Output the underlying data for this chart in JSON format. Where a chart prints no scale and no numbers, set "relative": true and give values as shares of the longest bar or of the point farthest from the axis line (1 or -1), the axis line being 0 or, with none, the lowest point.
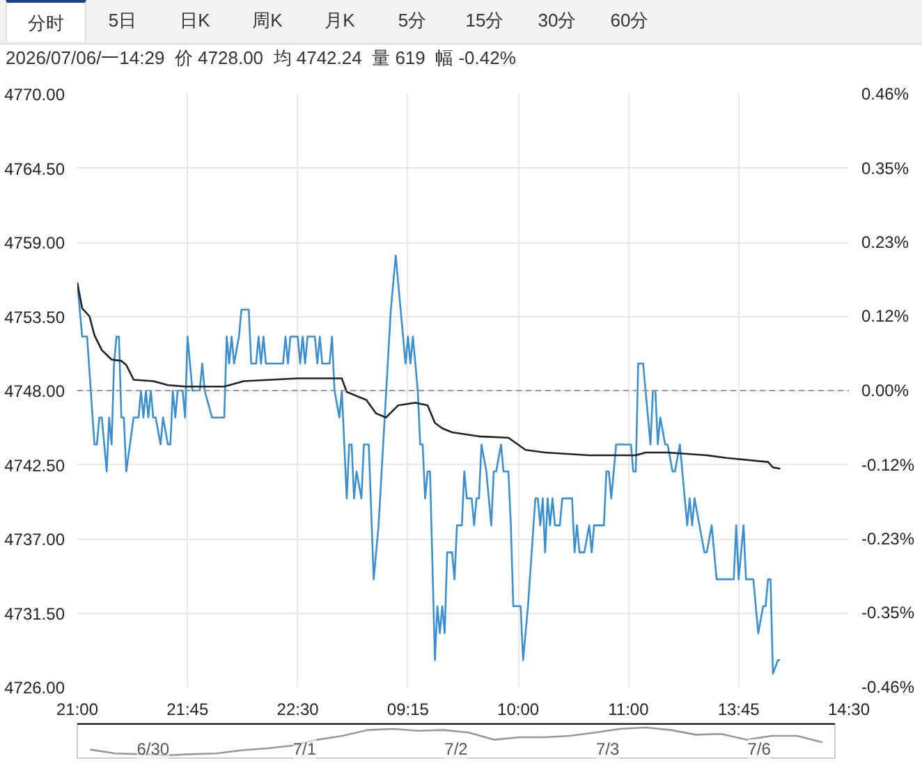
{
  "chart_data": [
    {
      "type": "line",
      "title": "2026/07/06/一14:29  价 4728.00  均 4742.24  量 619  幅 -0.42%",
      "annotations": [
        "分时",
        "5日",
        "日K",
        "周K",
        "月K",
        "5分",
        "15分",
        "30分",
        "60分"
      ],
      "categories": [
        "21:00",
        null,
        null,
        null,
        null,
        null,
        null,
        null,
        null,
        null,
        null,
        null,
        null,
        null,
        null,
        null,
        null,
        null,
        null,
        null,
        null,
        null,
        null,
        null,
        null,
        null,
        null,
        null,
        null,
        null,
        null,
        null,
        null,
        null,
        null,
        null,
        null,
        null,
        null,
        null,
        null,
        null,
        null,
        null,
        null,
        "21:45",
        null,
        null,
        null,
        null,
        null,
        null,
        null,
        null,
        null,
        null,
        null,
        null,
        null,
        null,
        null,
        null,
        null,
        null,
        null,
        null,
        null,
        null,
        null,
        null,
        null,
        null,
        null,
        null,
        null,
        null,
        null,
        null,
        null,
        null,
        null,
        null,
        null,
        null,
        null,
        null,
        null,
        null,
        null,
        null,
        "22:30",
        null,
        null,
        null,
        null,
        null,
        null,
        null,
        null,
        null,
        null,
        null,
        null,
        null,
        null,
        null,
        null,
        null,
        null,
        null,
        null,
        null,
        null,
        null,
        null,
        null,
        null,
        null,
        null,
        null,
        null,
        null,
        null,
        null,
        null,
        null,
        null,
        null,
        null,
        null,
        null,
        null,
        null,
        null,
        null,
        "09:15",
        null,
        null,
        null,
        null,
        null,
        null,
        null,
        null,
        null,
        null,
        null,
        null,
        null,
        null,
        null,
        null,
        null,
        null,
        null,
        null,
        null,
        null,
        null,
        null,
        null,
        null,
        null,
        null,
        null,
        null,
        null,
        null,
        null,
        null,
        null,
        null,
        null,
        null,
        null,
        null,
        null,
        null,
        null,
        null,
        "10:00",
        null,
        null,
        null,
        null,
        null,
        null,
        null,
        null,
        null,
        null,
        null,
        null,
        null,
        null,
        null,
        null,
        null,
        null,
        null,
        null,
        null,
        null,
        null,
        null,
        null,
        null,
        null,
        null,
        null,
        null,
        null,
        null,
        null,
        null,
        null,
        null,
        null,
        null,
        null,
        null,
        null,
        null,
        null,
        null,
        "11:00",
        null,
        null,
        null,
        null,
        null,
        null,
        null,
        null,
        null,
        null,
        null,
        null,
        null,
        null,
        null,
        null,
        null,
        null,
        null,
        null,
        null,
        null,
        null,
        null,
        null,
        null,
        null,
        null,
        null,
        null,
        null,
        null,
        null,
        null,
        null,
        null,
        null,
        null,
        null,
        null,
        null,
        null,
        null,
        null,
        "13:45",
        null,
        null,
        null,
        null,
        null,
        null,
        null,
        null,
        null,
        null,
        null,
        null,
        null,
        null,
        null,
        null,
        null,
        null,
        null,
        null,
        null,
        null,
        null,
        null,
        null,
        null,
        null,
        null,
        null,
        null,
        null,
        null,
        null,
        null,
        null,
        null,
        null,
        null,
        null,
        null,
        null,
        null,
        null,
        null,
        "14:30"
      ],
      "ylim": [
        4726,
        4770
      ],
      "yticks": [
        {
          "value": 4726,
          "label": "4726.00"
        },
        {
          "value": 4731.5,
          "label": "4731.50"
        },
        {
          "value": 4737,
          "label": "4737.00"
        },
        {
          "value": 4742.5,
          "label": "4742.50"
        },
        {
          "value": 4748,
          "label": "4748.00"
        },
        {
          "value": 4753.5,
          "label": "4753.50"
        },
        {
          "value": 4759,
          "label": "4759.00"
        },
        {
          "value": 4764.5,
          "label": "4764.50"
        },
        {
          "value": 4770,
          "label": "4770.00"
        }
      ],
      "y2lim": [
        -0.463,
        0.463
      ],
      "y2ticks": [
        {
          "value": -0.463,
          "label": "-0.46%"
        },
        {
          "value": -0.347,
          "label": "-0.35%"
        },
        {
          "value": -0.232,
          "label": "-0.23%"
        },
        {
          "value": -0.116,
          "label": "-0.12%"
        },
        {
          "value": 0,
          "label": "0.00%"
        },
        {
          "value": 0.116,
          "label": "0.12%"
        },
        {
          "value": 0.232,
          "label": "0.23%"
        },
        {
          "value": 0.347,
          "label": "0.35%"
        },
        {
          "value": 0.463,
          "label": "0.46%"
        }
      ],
      "grid": true,
      "line_style": "solid",
      "ref_lines": [
        {
          "axis": "y",
          "value": 4748,
          "color": "#999999",
          "line_style": "dashed"
        }
      ],
      "series": [
        {
          "color": "#3b8fd0",
          "values": [
            4756,
            null,
            4752,
            null,
            4752,
            null,
            null,
            4744,
            4744,
            4746,
            4746,
            null,
            4742,
            4746,
            4744,
            4750,
            4752,
            4752,
            4746,
            4746,
            4742,
            null,
            null,
            4746,
            null,
            4746,
            4748,
            4746,
            4748,
            4746,
            4748,
            4746,
            4746,
            null,
            4744,
            4746,
            null,
            4744,
            4744,
            4748,
            4746,
            4748,
            null,
            4748,
            4746,
            4752,
            null,
            4748,
            null,
            null,
            4748,
            4750,
            4748,
            null,
            null,
            4746,
            null,
            null,
            null,
            null,
            4746,
            4752,
            4750,
            4752,
            4750,
            null,
            4752,
            4754,
            null,
            null,
            4754,
            4750,
            null,
            4750,
            4752,
            4750,
            4752,
            4750,
            null,
            null,
            null,
            null,
            null,
            null,
            4750,
            4752,
            4750,
            4752,
            null,
            null,
            4752,
            4750,
            4752,
            4750,
            4752,
            null,
            null,
            4752,
            4750,
            4752,
            4750,
            null,
            null,
            4750,
            4752,
            4748,
            null,
            4746,
            4748,
            null,
            4740,
            4744,
            4744,
            4740,
            4742,
            null,
            4740,
            4744,
            null,
            4744,
            null,
            4734,
            null,
            4738,
            null,
            null,
            null,
            null,
            4754,
            null,
            4758,
            null,
            null,
            4752,
            4750,
            4752,
            4750,
            4752,
            null,
            4748,
            4744,
            4744,
            4740,
            4742,
            4742,
            null,
            4728,
            4732,
            4730,
            4732,
            4730,
            4736,
            null,
            4736,
            4734,
            4738,
            null,
            4738,
            4742,
            4740,
            null,
            4740,
            4738,
            4740,
            4740,
            4744,
            null,
            4742,
            null,
            4738,
            4742,
            4742,
            null,
            4744,
            4742,
            null,
            4742,
            4738,
            4732,
            null,
            null,
            4732,
            4728,
            null,
            4732,
            null,
            null,
            4740,
            4740,
            4738,
            4740,
            4736,
            4740,
            4738,
            4740,
            4738,
            null,
            4738,
            4740,
            null,
            null,
            null,
            4740,
            4736,
            4738,
            4736,
            null,
            4736,
            null,
            4738,
            4736,
            4738,
            null,
            null,
            null,
            4738,
            4742,
            4742,
            4740,
            null,
            4744,
            null,
            null,
            null,
            null,
            null,
            4744,
            4742,
            4742,
            4750,
            null,
            4750,
            4748,
            null,
            4744,
            4748,
            4748,
            4744,
            4746,
            null,
            4744,
            4744,
            null,
            4742,
            4742,
            null,
            4744,
            null,
            4740,
            4738,
            4740,
            4738,
            4740,
            null,
            4738,
            null,
            4736,
            4736,
            null,
            4738,
            null,
            4734,
            4734,
            null,
            null,
            null,
            null,
            null,
            4734,
            4738,
            4734,
            4736,
            4738,
            4734,
            null,
            null,
            4734,
            null,
            4730,
            null,
            4732,
            4732,
            4734,
            4734,
            4727,
            null,
            4728,
            4728,
            null,
            null,
            null,
            null,
            null,
            null,
            null,
            null,
            null,
            null,
            null,
            null,
            null,
            null,
            null,
            null,
            null,
            null,
            null,
            null,
            null,
            null,
            null,
            null,
            null,
            null,
            null,
            null
          ]
        },
        {
          "color": "#222222",
          "values": [
            4756,
            null,
            4754.1,
            null,
            null,
            4753.5,
            null,
            4752.1,
            null,
            null,
            4751,
            null,
            null,
            null,
            4750.3,
            null,
            null,
            null,
            4750.2,
            null,
            4749.9,
            null,
            null,
            4748.8,
            null,
            null,
            null,
            null,
            null,
            null,
            null,
            4748.7,
            null,
            null,
            null,
            null,
            null,
            4748.4,
            null,
            null,
            null,
            null,
            null,
            null,
            4748.3,
            null,
            null,
            null,
            null,
            null,
            null,
            null,
            null,
            null,
            null,
            null,
            null,
            null,
            null,
            null,
            4748.3,
            null,
            null,
            null,
            null,
            null,
            null,
            null,
            4748.7,
            null,
            null,
            null,
            null,
            null,
            null,
            null,
            null,
            null,
            null,
            null,
            null,
            null,
            null,
            null,
            null,
            null,
            null,
            null,
            null,
            null,
            4748.9,
            null,
            null,
            null,
            null,
            null,
            null,
            null,
            null,
            null,
            null,
            null,
            null,
            null,
            null,
            null,
            null,
            null,
            4748.9,
            null,
            4747.9,
            null,
            null,
            null,
            null,
            null,
            null,
            null,
            4747.3,
            null,
            null,
            null,
            4746.3,
            null,
            null,
            null,
            4746,
            null,
            null,
            null,
            null,
            4746.9,
            null,
            null,
            null,
            null,
            null,
            null,
            4747.1,
            null,
            null,
            null,
            null,
            4746.9,
            null,
            null,
            4745.6,
            null,
            null,
            4745.2,
            null,
            null,
            null,
            4744.9,
            null,
            null,
            null,
            null,
            null,
            null,
            null,
            null,
            null,
            null,
            4744.6,
            null,
            null,
            null,
            null,
            null,
            null,
            null,
            null,
            null,
            null,
            null,
            4744.5,
            null,
            null,
            null,
            null,
            null,
            null,
            4743.6,
            null,
            null,
            null,
            null,
            null,
            null,
            null,
            4743.4,
            null,
            null,
            null,
            null,
            null,
            null,
            null,
            null,
            null,
            null,
            null,
            null,
            null,
            null,
            null,
            null,
            null,
            4743.2,
            null,
            null,
            null,
            null,
            null,
            null,
            null,
            null,
            null,
            null,
            null,
            null,
            null,
            null,
            null,
            null,
            null,
            null,
            4743.2,
            null,
            null,
            null,
            4743.4,
            null,
            null,
            null,
            null,
            null,
            null,
            null,
            null,
            4743.4,
            null,
            null,
            null,
            null,
            null,
            null,
            null,
            null,
            null,
            null,
            null,
            null,
            null,
            null,
            null,
            4743.2,
            null,
            null,
            null,
            null,
            null,
            null,
            null,
            4743,
            null,
            null,
            null,
            null,
            null,
            null,
            null,
            null,
            null,
            null,
            null,
            null,
            null,
            null,
            null,
            null,
            4742.7,
            null,
            4742.3,
            null,
            null,
            4742.2,
            null,
            null,
            null,
            null,
            null,
            null,
            null,
            null,
            null,
            null,
            null,
            null,
            null,
            null,
            null,
            null,
            null,
            null,
            null,
            null,
            null,
            null,
            null,
            null,
            null,
            null,
            null,
            null
          ]
        }
      ]
    },
    {
      "type": "line",
      "relative": true,
      "tick_labels": false,
      "annotations": [
        "6/30",
        "7/1",
        "7/2",
        "7/3",
        "7/6"
      ],
      "categories": [
        null,
        null,
        null,
        null,
        null,
        null,
        null,
        null,
        null,
        null,
        null,
        null,
        null,
        null,
        null,
        null,
        null,
        null,
        null,
        null,
        null,
        null,
        null,
        null,
        null,
        null,
        null,
        null,
        null,
        null
      ],
      "series": [
        {
          "color": "#999999",
          "values": [
            0.21,
            0.07,
            0.04,
            0,
            0.04,
            0.07,
            0.18,
            0.25,
            0.35,
            0.56,
            0.7,
            0.91,
            0.95,
            0.88,
            0.91,
            0.82,
            0.56,
            0.65,
            0.65,
            0.7,
            0.82,
            0.95,
            1.0,
            0.91,
            0.74,
            0.77,
            0.56,
            0.7,
            0.7,
            0.47
          ]
        }
      ]
    }
  ]
}
